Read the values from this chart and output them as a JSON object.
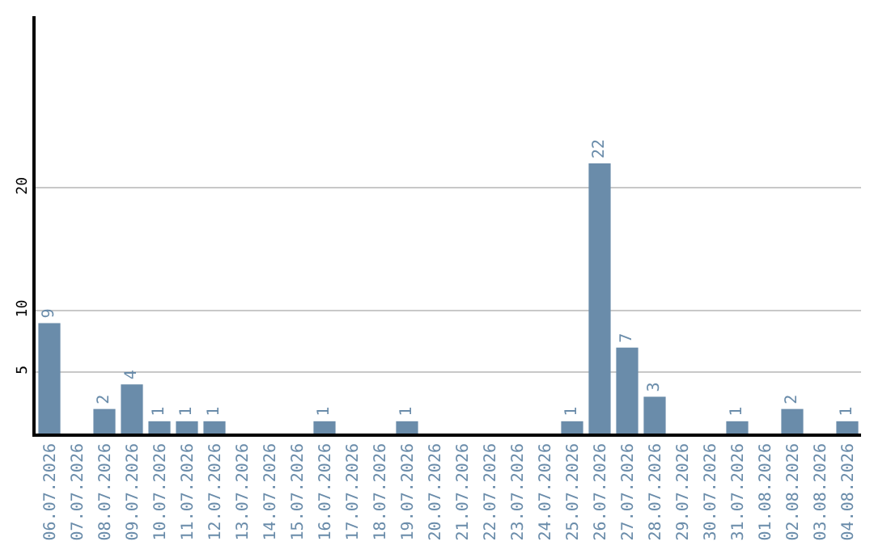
{
  "chart_data": {
    "type": "bar",
    "categories": [
      "06.07.2026",
      "07.07.2026",
      "08.07.2026",
      "09.07.2026",
      "10.07.2026",
      "11.07.2026",
      "12.07.2026",
      "13.07.2026",
      "14.07.2026",
      "15.07.2026",
      "16.07.2026",
      "17.07.2026",
      "18.07.2026",
      "19.07.2026",
      "20.07.2026",
      "21.07.2026",
      "22.07.2026",
      "23.07.2026",
      "24.07.2026",
      "25.07.2026",
      "26.07.2026",
      "27.07.2026",
      "28.07.2026",
      "29.07.2026",
      "30.07.2026",
      "31.07.2026",
      "01.08.2026",
      "02.08.2026",
      "03.08.2026",
      "04.08.2026"
    ],
    "values": [
      9,
      0,
      2,
      4,
      1,
      1,
      1,
      0,
      0,
      0,
      1,
      0,
      0,
      1,
      0,
      0,
      0,
      0,
      0,
      1,
      22,
      7,
      3,
      0,
      0,
      1,
      0,
      2,
      0,
      1
    ],
    "value_labels": [
      "9",
      null,
      "2",
      "4",
      "1",
      "1",
      "1",
      null,
      null,
      null,
      "1",
      null,
      null,
      "1",
      null,
      null,
      null,
      null,
      null,
      "1",
      "22",
      "7",
      "3",
      null,
      null,
      "1",
      null,
      "2",
      null,
      "1"
    ],
    "color": "#6a8caa",
    "ylim": [
      0,
      34
    ],
    "yticks": [
      5,
      10,
      20
    ],
    "grid": "y",
    "legend": false
  }
}
